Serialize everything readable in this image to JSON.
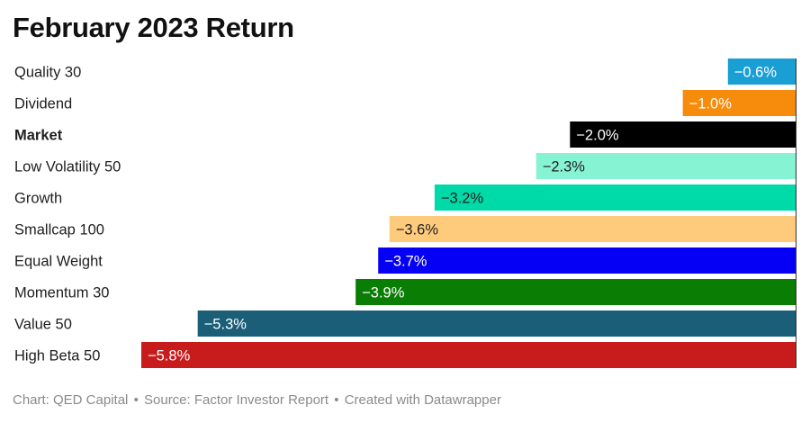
{
  "page": {
    "title": "February 2023 Return",
    "footer": {
      "chart_credit": "Chart: QED Capital",
      "source": "Source: Factor Investor Report",
      "created_with": "Created with Datawrapper",
      "separator": "•"
    }
  },
  "chart_data": {
    "type": "bar",
    "orientation": "horizontal",
    "title": "February 2023 Return",
    "categories": [
      "Quality 30",
      "Dividend",
      "Market",
      "Low Volatility 50",
      "Growth",
      "Smallcap 100",
      "Equal Weight",
      "Momentum 30",
      "Value 50",
      "High Beta 50"
    ],
    "values": [
      -0.6,
      -1.0,
      -2.0,
      -2.3,
      -3.2,
      -3.6,
      -3.7,
      -3.9,
      -5.3,
      -5.8
    ],
    "value_labels": [
      "−0.6%",
      "−1.0%",
      "−2.0%",
      "−2.3%",
      "−3.2%",
      "−3.6%",
      "−3.7%",
      "−3.9%",
      "−5.3%",
      "−5.8%"
    ],
    "colors": [
      "#1a9fd4",
      "#f68b0c",
      "#000000",
      "#86f4d2",
      "#00d9a8",
      "#fecb7d",
      "#0500f5",
      "#0a7d05",
      "#1a5e78",
      "#c81b1c"
    ],
    "label_colors": [
      "#ffffff",
      "#ffffff",
      "#ffffff",
      "#1e1e1e",
      "#1e1e1e",
      "#1e1e1e",
      "#ffffff",
      "#ffffff",
      "#ffffff",
      "#ffffff"
    ],
    "bold_categories": [
      "Market"
    ],
    "xlim": [
      -5.8,
      0
    ],
    "grid": false,
    "legend": "none"
  }
}
